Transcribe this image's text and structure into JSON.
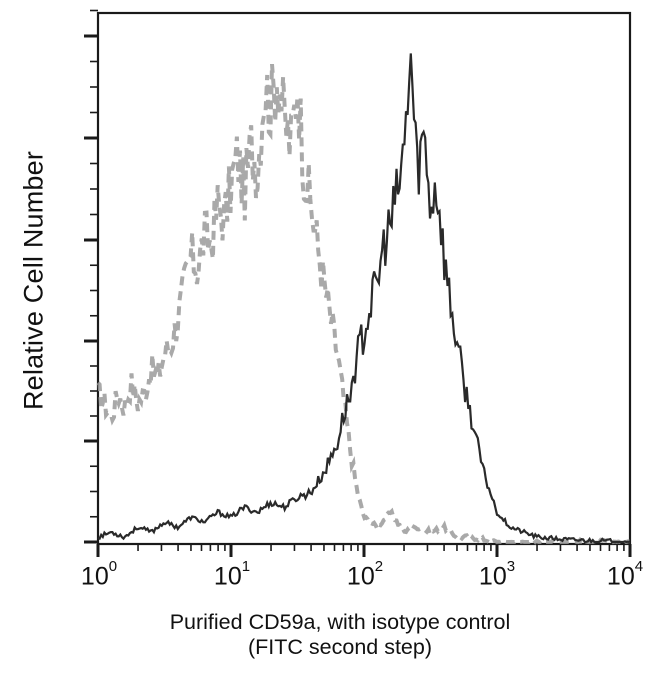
{
  "chart_data": {
    "type": "histogram-overlay",
    "title": "",
    "ylabel": "Relative Cell Number",
    "xlabel": "Purified CD59a, with isotype control",
    "xlabel_line2": "(FITC second step)",
    "x_scale": "log",
    "xlim": [
      1,
      10000
    ],
    "x_ticks": [
      {
        "base": "10",
        "exp": "0",
        "value": 1
      },
      {
        "base": "10",
        "exp": "1",
        "value": 10
      },
      {
        "base": "10",
        "exp": "2",
        "value": 100
      },
      {
        "base": "10",
        "exp": "3",
        "value": 1000
      },
      {
        "base": "10",
        "exp": "4",
        "value": 10000
      }
    ],
    "y_ticks_major_count": 6,
    "y_tick_labels": [],
    "grid": false,
    "legend": null,
    "series": [
      {
        "name": "Isotype control",
        "style": "dashed",
        "color": "#9a9a9a",
        "log10_x": [
          0.0,
          0.05,
          0.1,
          0.15,
          0.2,
          0.25,
          0.3,
          0.35,
          0.4,
          0.45,
          0.5,
          0.55,
          0.6,
          0.65,
          0.7,
          0.75,
          0.8,
          0.85,
          0.9,
          0.95,
          1.0,
          1.05,
          1.1,
          1.15,
          1.2,
          1.25,
          1.3,
          1.35,
          1.4,
          1.45,
          1.5,
          1.55,
          1.6,
          1.65,
          1.7,
          1.75,
          1.8,
          1.85,
          1.9,
          1.95,
          2.0,
          2.1,
          2.2,
          2.3,
          2.4,
          2.5,
          2.6,
          2.7,
          2.8,
          3.0,
          4.0
        ],
        "relative_counts": [
          0.3,
          0.28,
          0.25,
          0.3,
          0.27,
          0.32,
          0.28,
          0.3,
          0.35,
          0.33,
          0.38,
          0.4,
          0.45,
          0.52,
          0.58,
          0.55,
          0.62,
          0.6,
          0.68,
          0.65,
          0.72,
          0.78,
          0.7,
          0.8,
          0.75,
          0.92,
          0.88,
          0.95,
          0.85,
          0.8,
          0.93,
          0.75,
          0.68,
          0.6,
          0.52,
          0.45,
          0.38,
          0.28,
          0.18,
          0.1,
          0.05,
          0.03,
          0.06,
          0.02,
          0.03,
          0.02,
          0.03,
          0.01,
          0.01,
          0.0,
          0.0
        ]
      },
      {
        "name": "CD59a",
        "style": "solid",
        "color": "#2a2a2a",
        "log10_x": [
          0.0,
          0.1,
          0.2,
          0.3,
          0.4,
          0.5,
          0.6,
          0.7,
          0.8,
          0.9,
          1.0,
          1.1,
          1.2,
          1.3,
          1.4,
          1.5,
          1.6,
          1.65,
          1.7,
          1.75,
          1.8,
          1.85,
          1.9,
          1.95,
          2.0,
          2.05,
          2.1,
          2.15,
          2.2,
          2.25,
          2.3,
          2.35,
          2.4,
          2.45,
          2.5,
          2.55,
          2.6,
          2.65,
          2.7,
          2.75,
          2.8,
          2.85,
          2.9,
          2.95,
          3.0,
          3.1,
          3.2,
          3.3,
          3.5,
          4.0
        ],
        "relative_counts": [
          0.01,
          0.02,
          0.01,
          0.03,
          0.02,
          0.04,
          0.03,
          0.05,
          0.04,
          0.06,
          0.05,
          0.07,
          0.06,
          0.08,
          0.07,
          0.09,
          0.1,
          0.12,
          0.14,
          0.17,
          0.2,
          0.26,
          0.3,
          0.38,
          0.42,
          0.48,
          0.52,
          0.6,
          0.64,
          0.7,
          0.78,
          0.98,
          0.75,
          0.82,
          0.68,
          0.72,
          0.58,
          0.48,
          0.4,
          0.32,
          0.26,
          0.2,
          0.14,
          0.1,
          0.06,
          0.03,
          0.02,
          0.01,
          0.005,
          0.0
        ]
      }
    ]
  },
  "axes": {
    "ylabel": "Relative Cell Number",
    "xlabel_line1": "Purified CD59a, with isotype control",
    "xlabel_line2": "(FITC second step)",
    "x_ticks": [
      {
        "base": "10",
        "exp": "0"
      },
      {
        "base": "10",
        "exp": "1"
      },
      {
        "base": "10",
        "exp": "2"
      },
      {
        "base": "10",
        "exp": "3"
      },
      {
        "base": "10",
        "exp": "4"
      }
    ]
  },
  "colors": {
    "axis": "#1a1a1a",
    "isotype": "#9a9a9a",
    "cd59a": "#2a2a2a"
  }
}
